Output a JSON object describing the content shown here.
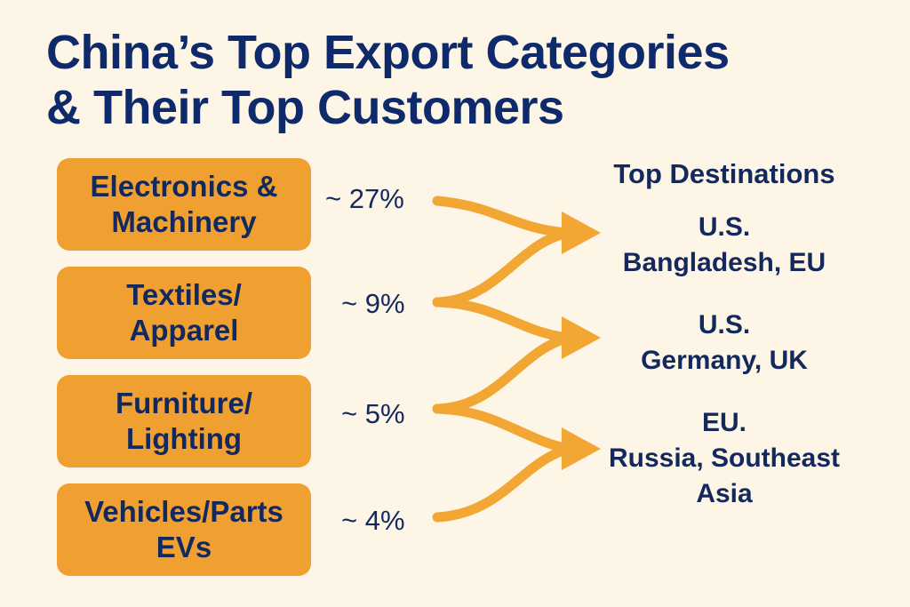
{
  "title": {
    "line1": "China’s Top Export Categories",
    "line2": "& Their Top Customers"
  },
  "categories": [
    {
      "line1": "Electronics &",
      "line2": "Machinery",
      "share": "~ 27%"
    },
    {
      "line1": "Textiles/",
      "line2": "Apparel",
      "share": "~ 9%"
    },
    {
      "line1": "Furniture/",
      "line2": "Lighting",
      "share": "~ 5%"
    },
    {
      "line1": "Vehicles/Parts",
      "line2": "EVs",
      "share": "~ 4%"
    }
  ],
  "destinations": {
    "header": "Top Destinations",
    "groups": [
      {
        "line1": "U.S.",
        "line2": "Bangladesh, EU",
        "line3": ""
      },
      {
        "line1": "U.S.",
        "line2": "Germany, UK",
        "line3": ""
      },
      {
        "line1": "EU.",
        "line2": "Russia, Southeast",
        "line3": "Asia"
      }
    ]
  },
  "colors": {
    "background": "#fdf5e6",
    "box": "#f0a030",
    "arrow": "#f2a633",
    "text": "#13295e"
  }
}
